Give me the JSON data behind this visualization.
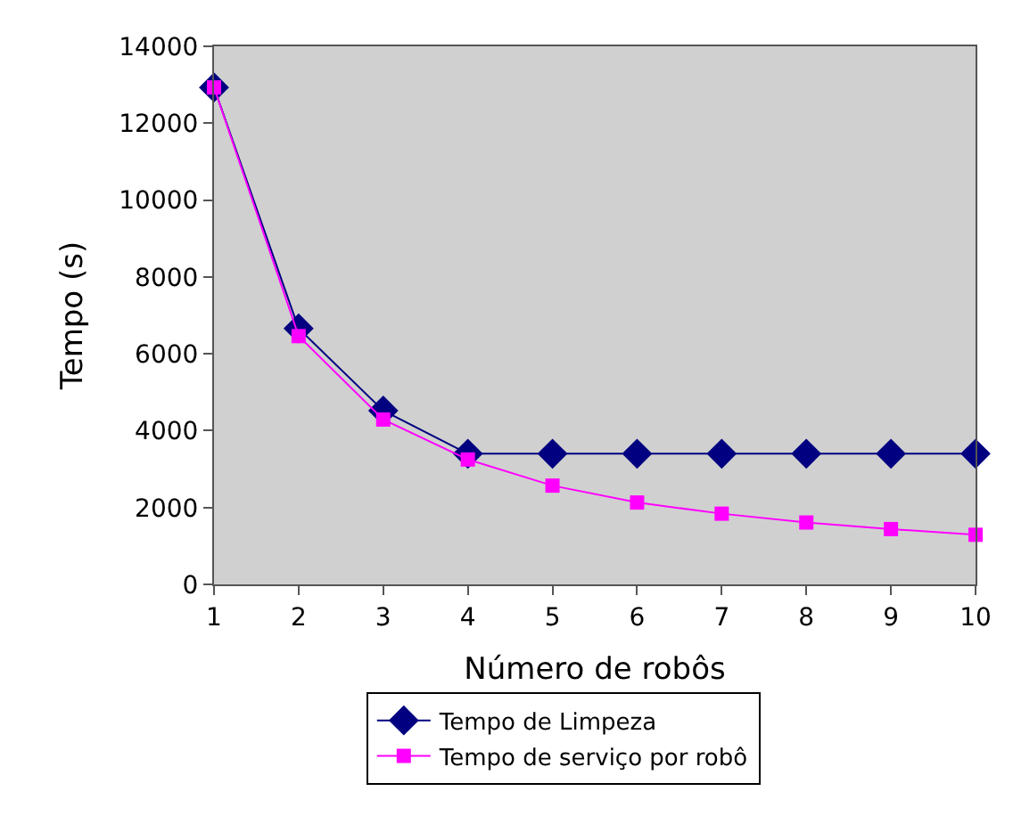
{
  "chart_data": {
    "type": "line",
    "xlabel": "Número de robôs",
    "ylabel": "Tempo (s)",
    "x": [
      1,
      2,
      3,
      4,
      5,
      6,
      7,
      8,
      9,
      10
    ],
    "series": [
      {
        "name": "Tempo de Limpeza",
        "color": "#000080",
        "marker": "diamond",
        "values": [
          12930,
          6660,
          4520,
          3400,
          3400,
          3400,
          3400,
          3400,
          3400,
          3400
        ]
      },
      {
        "name": "Tempo de serviço por robô",
        "color": "#ff00ff",
        "marker": "square",
        "values": [
          12930,
          6460,
          4290,
          3250,
          2570,
          2130,
          1840,
          1610,
          1440,
          1290
        ]
      }
    ],
    "xlim": [
      1,
      10
    ],
    "xticks": [
      1,
      2,
      3,
      4,
      5,
      6,
      7,
      8,
      9,
      10
    ],
    "ylim": [
      0,
      14000
    ],
    "yticks": [
      0,
      2000,
      4000,
      6000,
      8000,
      10000,
      12000,
      14000
    ],
    "grid": false,
    "legend": "bottom"
  }
}
